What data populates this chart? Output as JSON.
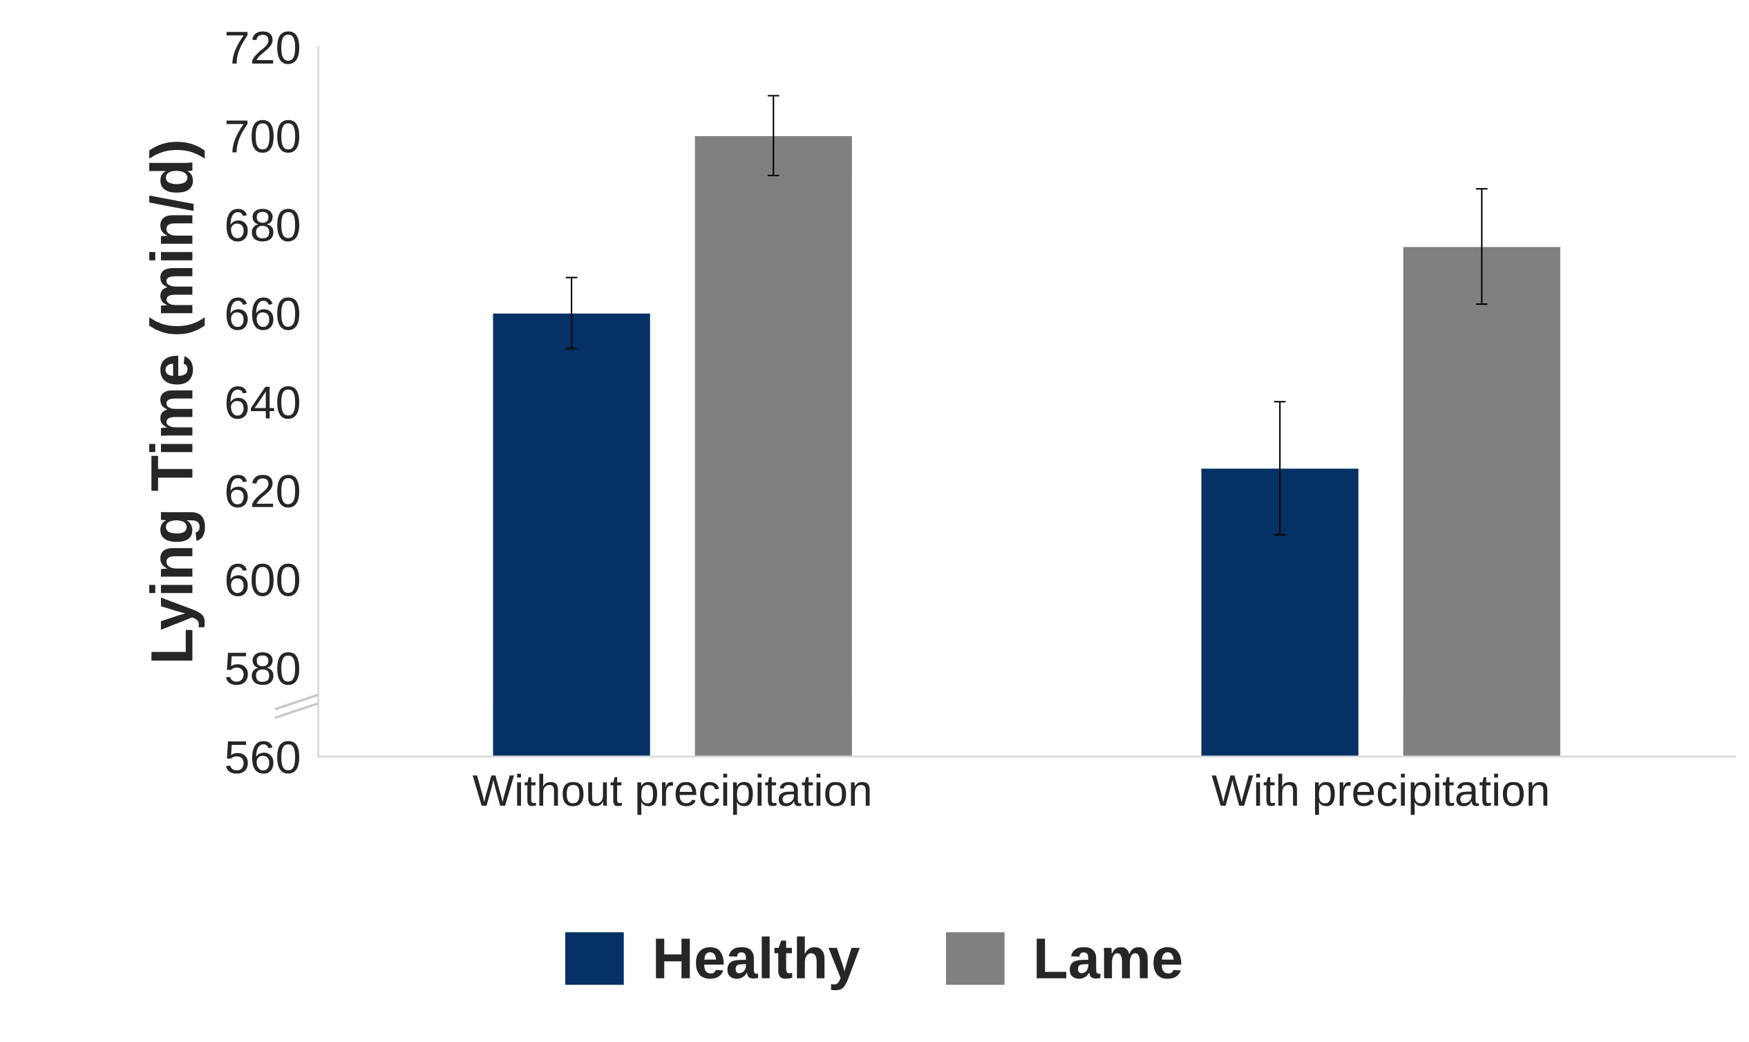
{
  "chart_data": {
    "type": "bar",
    "ylabel": "Lying Time (min/d)",
    "categories": [
      "Without precipitation",
      "With precipitation"
    ],
    "series": [
      {
        "name": "Healthy",
        "color": "#053165",
        "values": [
          660,
          625
        ],
        "errors": [
          8,
          15
        ]
      },
      {
        "name": "Lame",
        "color": "#808080",
        "values": [
          700,
          675
        ],
        "errors": [
          9,
          13
        ]
      }
    ],
    "ylim": [
      560,
      720
    ],
    "yticks": [
      560,
      580,
      600,
      620,
      640,
      660,
      680,
      700,
      720
    ],
    "grid": false,
    "legend": "bottom"
  }
}
